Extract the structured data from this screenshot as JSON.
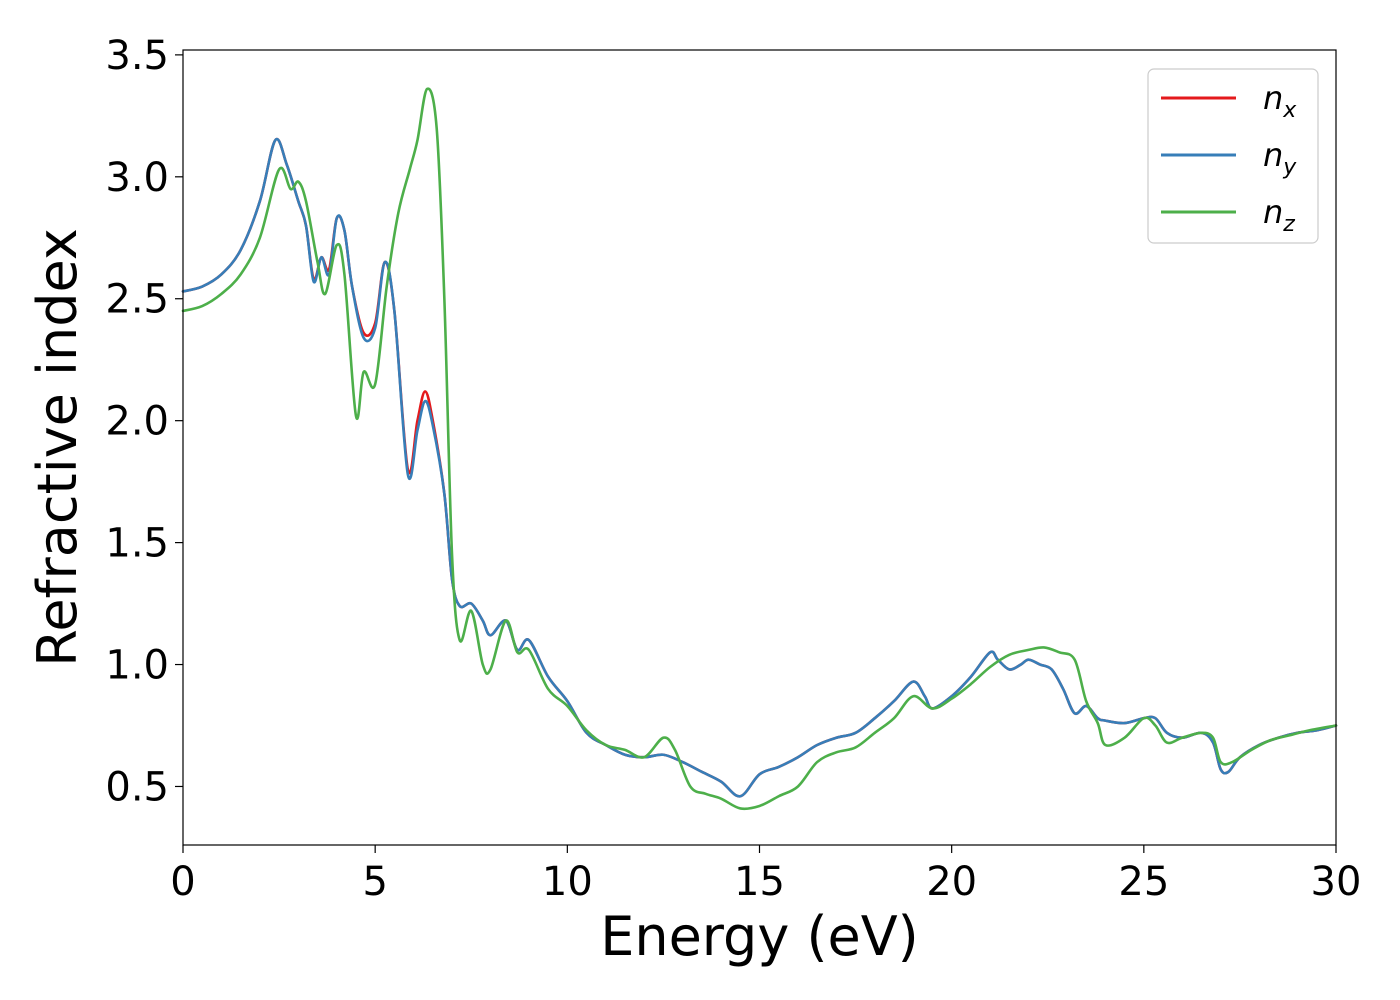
{
  "chart_data": {
    "type": "line",
    "title": "",
    "xlabel": "Energy (eV)",
    "ylabel": "Refractive index",
    "xlim": [
      0,
      30
    ],
    "ylim": [
      0.26,
      3.52
    ],
    "xticks": [
      0,
      5,
      10,
      15,
      20,
      25,
      30
    ],
    "yticks": [
      0.5,
      1.0,
      1.5,
      2.0,
      2.5,
      3.0,
      3.5
    ],
    "xtick_labels": [
      "0",
      "5",
      "10",
      "15",
      "20",
      "25",
      "30"
    ],
    "ytick_labels": [
      "0.5",
      "1.0",
      "1.5",
      "2.0",
      "2.5",
      "3.0",
      "3.5"
    ],
    "grid": false,
    "legend": "top-right",
    "series": [
      {
        "name": "n_x",
        "label_main": "n",
        "label_sub": "x",
        "color": "#e41a1c",
        "x": [
          0,
          0.5,
          1.0,
          1.5,
          2.0,
          2.4,
          2.7,
          3.0,
          3.2,
          3.4,
          3.6,
          3.8,
          4.0,
          4.2,
          4.4,
          4.7,
          5.0,
          5.25,
          5.5,
          5.85,
          6.1,
          6.3,
          6.5,
          6.8,
          7.0,
          7.2,
          7.5,
          7.8,
          8.0,
          8.4,
          8.7,
          9.0,
          9.5,
          10.0,
          10.5,
          11.0,
          11.5,
          12.0,
          12.5,
          13.0,
          13.5,
          14.0,
          14.5,
          15.0,
          15.5,
          16.0,
          16.5,
          17.0,
          17.5,
          18.0,
          18.5,
          19.0,
          19.3,
          19.5,
          20.0,
          20.5,
          21.0,
          21.2,
          21.5,
          21.8,
          22.0,
          22.3,
          22.6,
          22.9,
          23.2,
          23.5,
          23.8,
          24.0,
          24.5,
          25.0,
          25.3,
          25.6,
          26.0,
          26.5,
          26.8,
          27.0,
          27.2,
          27.5,
          28.0,
          28.5,
          29.0,
          29.5,
          30.0
        ],
        "y": [
          2.53,
          2.55,
          2.6,
          2.7,
          2.9,
          3.15,
          3.05,
          2.9,
          2.8,
          2.58,
          2.67,
          2.62,
          2.83,
          2.78,
          2.55,
          2.36,
          2.4,
          2.65,
          2.45,
          1.8,
          2.0,
          2.12,
          2.0,
          1.7,
          1.35,
          1.24,
          1.25,
          1.18,
          1.12,
          1.18,
          1.06,
          1.1,
          0.95,
          0.85,
          0.72,
          0.67,
          0.63,
          0.62,
          0.63,
          0.6,
          0.56,
          0.52,
          0.46,
          0.55,
          0.58,
          0.62,
          0.67,
          0.7,
          0.72,
          0.78,
          0.85,
          0.93,
          0.87,
          0.82,
          0.87,
          0.95,
          1.05,
          1.02,
          0.98,
          1.0,
          1.02,
          1.0,
          0.98,
          0.9,
          0.8,
          0.83,
          0.78,
          0.77,
          0.76,
          0.78,
          0.78,
          0.72,
          0.7,
          0.72,
          0.68,
          0.57,
          0.56,
          0.62,
          0.67,
          0.7,
          0.72,
          0.73,
          0.75
        ]
      },
      {
        "name": "n_y",
        "label_main": "n",
        "label_sub": "y",
        "color": "#377eb8",
        "x": [
          0,
          0.5,
          1.0,
          1.5,
          2.0,
          2.4,
          2.7,
          3.0,
          3.2,
          3.4,
          3.6,
          3.8,
          4.0,
          4.2,
          4.4,
          4.7,
          5.0,
          5.25,
          5.5,
          5.85,
          6.1,
          6.3,
          6.5,
          6.8,
          7.0,
          7.2,
          7.5,
          7.8,
          8.0,
          8.4,
          8.7,
          9.0,
          9.5,
          10.0,
          10.5,
          11.0,
          11.5,
          12.0,
          12.5,
          13.0,
          13.5,
          14.0,
          14.5,
          15.0,
          15.5,
          16.0,
          16.5,
          17.0,
          17.5,
          18.0,
          18.5,
          19.0,
          19.3,
          19.5,
          20.0,
          20.5,
          21.0,
          21.2,
          21.5,
          21.8,
          22.0,
          22.3,
          22.6,
          22.9,
          23.2,
          23.5,
          23.8,
          24.0,
          24.5,
          25.0,
          25.3,
          25.6,
          26.0,
          26.5,
          26.8,
          27.0,
          27.2,
          27.5,
          28.0,
          28.5,
          29.0,
          29.5,
          30.0
        ],
        "y": [
          2.53,
          2.55,
          2.6,
          2.7,
          2.9,
          3.15,
          3.05,
          2.9,
          2.8,
          2.57,
          2.67,
          2.6,
          2.83,
          2.78,
          2.55,
          2.34,
          2.38,
          2.65,
          2.45,
          1.78,
          1.96,
          2.08,
          1.98,
          1.7,
          1.35,
          1.24,
          1.25,
          1.18,
          1.12,
          1.18,
          1.06,
          1.1,
          0.95,
          0.85,
          0.72,
          0.67,
          0.63,
          0.62,
          0.63,
          0.6,
          0.56,
          0.52,
          0.46,
          0.55,
          0.58,
          0.62,
          0.67,
          0.7,
          0.72,
          0.78,
          0.85,
          0.93,
          0.87,
          0.82,
          0.87,
          0.95,
          1.05,
          1.02,
          0.98,
          1.0,
          1.02,
          1.0,
          0.98,
          0.9,
          0.8,
          0.83,
          0.78,
          0.77,
          0.76,
          0.78,
          0.78,
          0.72,
          0.7,
          0.72,
          0.68,
          0.57,
          0.56,
          0.62,
          0.67,
          0.7,
          0.72,
          0.73,
          0.75
        ]
      },
      {
        "name": "n_z",
        "label_main": "n",
        "label_sub": "z",
        "color": "#4daf4a",
        "x": [
          0,
          0.5,
          1.0,
          1.5,
          2.0,
          2.5,
          2.8,
          3.0,
          3.2,
          3.5,
          3.7,
          4.0,
          4.2,
          4.5,
          4.7,
          5.0,
          5.3,
          5.6,
          5.9,
          6.1,
          6.35,
          6.6,
          6.8,
          7.0,
          7.2,
          7.5,
          7.8,
          8.0,
          8.4,
          8.7,
          9.0,
          9.5,
          10.0,
          10.5,
          11.0,
          11.5,
          12.0,
          12.5,
          12.8,
          13.2,
          13.6,
          14.0,
          14.5,
          15.0,
          15.5,
          16.0,
          16.5,
          17.0,
          17.5,
          18.0,
          18.5,
          19.0,
          19.5,
          20.0,
          20.5,
          21.0,
          21.5,
          22.0,
          22.4,
          22.8,
          23.2,
          23.5,
          23.8,
          24.0,
          24.5,
          25.0,
          25.3,
          25.6,
          26.0,
          26.5,
          26.8,
          27.0,
          27.3,
          27.8,
          28.3,
          28.8,
          29.3,
          30.0
        ],
        "y": [
          2.45,
          2.47,
          2.52,
          2.6,
          2.75,
          3.03,
          2.95,
          2.98,
          2.9,
          2.65,
          2.52,
          2.72,
          2.6,
          2.02,
          2.2,
          2.15,
          2.55,
          2.85,
          3.03,
          3.15,
          3.36,
          3.2,
          2.5,
          1.45,
          1.1,
          1.22,
          1.0,
          0.98,
          1.18,
          1.05,
          1.06,
          0.9,
          0.83,
          0.73,
          0.67,
          0.65,
          0.62,
          0.7,
          0.65,
          0.5,
          0.47,
          0.45,
          0.41,
          0.42,
          0.46,
          0.5,
          0.6,
          0.64,
          0.66,
          0.72,
          0.78,
          0.87,
          0.82,
          0.86,
          0.92,
          0.99,
          1.04,
          1.06,
          1.07,
          1.05,
          1.02,
          0.85,
          0.76,
          0.67,
          0.7,
          0.78,
          0.75,
          0.68,
          0.7,
          0.72,
          0.7,
          0.6,
          0.6,
          0.65,
          0.69,
          0.71,
          0.73,
          0.75
        ]
      }
    ]
  }
}
